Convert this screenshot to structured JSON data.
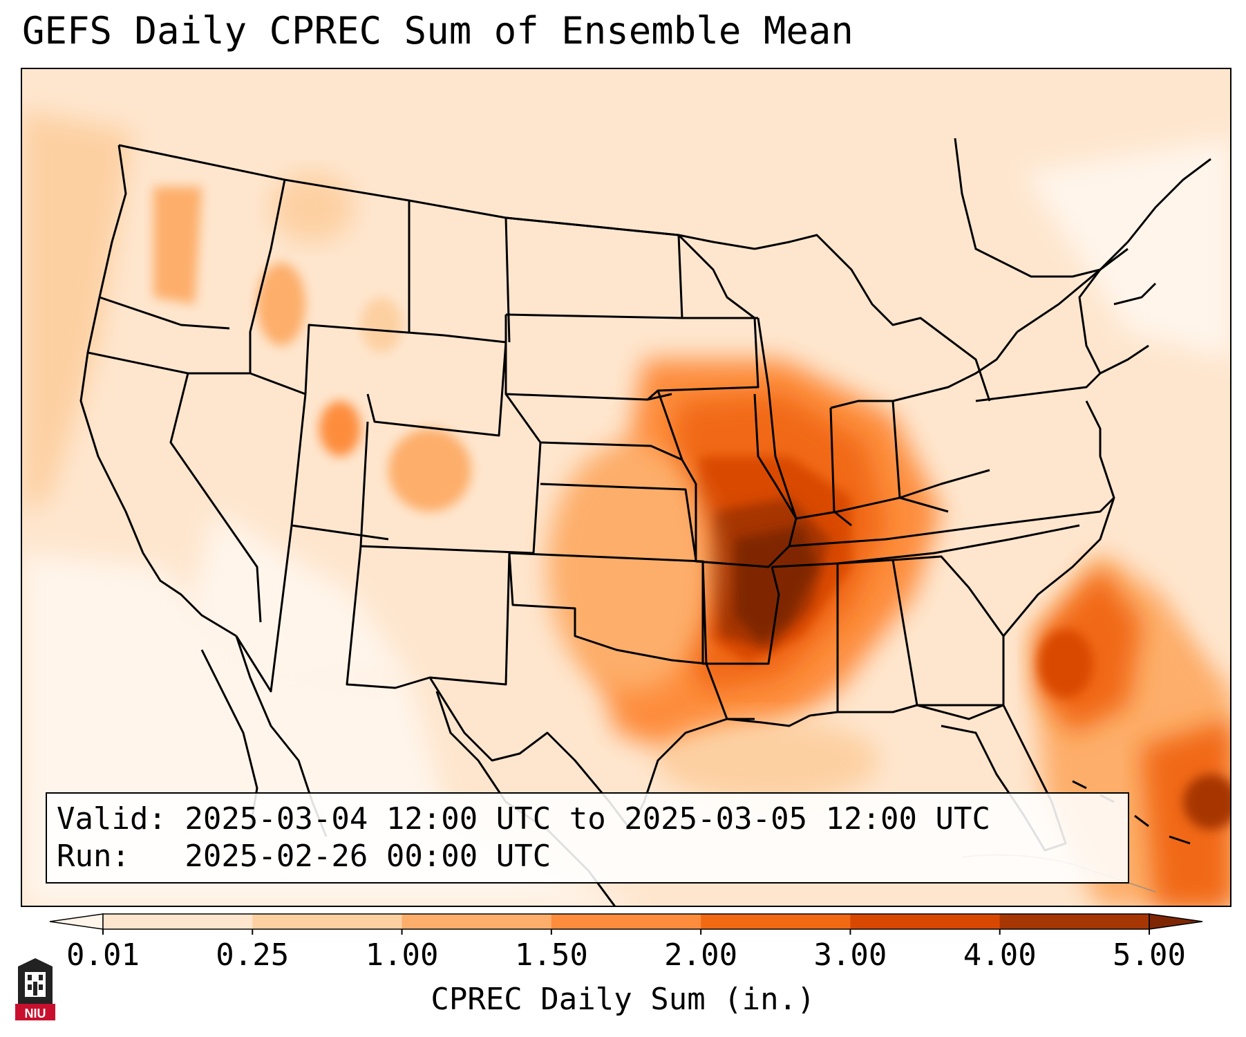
{
  "title": "GEFS Daily CPREC Sum of Ensemble Mean",
  "info": {
    "valid_line": "Valid: 2025-03-04 12:00 UTC to 2025-03-05 12:00 UTC",
    "run_line": "Run:   2025-02-26 00:00 UTC"
  },
  "colorbar": {
    "label": "CPREC Daily Sum (in.)",
    "ticks": [
      "0.01",
      "0.25",
      "1.00",
      "1.50",
      "2.00",
      "3.00",
      "4.00",
      "5.00"
    ],
    "colors": [
      "#fff5eb",
      "#fee6ce",
      "#fdd0a2",
      "#fdae6b",
      "#fd8d3c",
      "#f16913",
      "#d94801",
      "#a63603",
      "#7f2704"
    ],
    "extend": "both"
  },
  "logo": {
    "text": "NIU",
    "colors": {
      "red": "#c8102e",
      "dark": "#222222"
    }
  },
  "map": {
    "region": "Continental United States",
    "hotspots": [
      {
        "name": "mid-mississippi-valley",
        "level": 8
      },
      {
        "name": "mid-south",
        "level": 7
      },
      {
        "name": "ohio-valley",
        "level": 6
      },
      {
        "name": "southern-plains",
        "level": 4
      },
      {
        "name": "atlantic-offshore",
        "level": 6
      },
      {
        "name": "bahamas",
        "level": 7
      },
      {
        "name": "colorado-rockies",
        "level": 3
      },
      {
        "name": "utah-mountains",
        "level": 4
      }
    ]
  }
}
